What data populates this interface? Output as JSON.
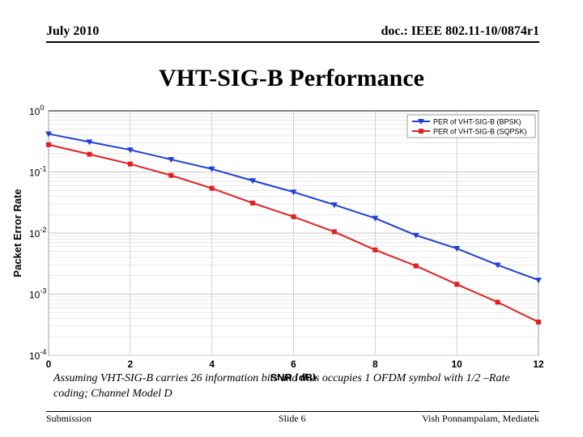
{
  "header": {
    "date": "July 2010",
    "doc": "doc.: IEEE 802.11-10/0874r1"
  },
  "title": "VHT-SIG-B Performance",
  "caption": "Assuming VHT-SIG-B carries 26 information bits and thus occupies 1 OFDM symbol with 1/2 –Rate coding; Channel Model D",
  "footer": {
    "left": "Submission",
    "center": "Slide 6",
    "right": "Vish Ponnampalam, Mediatek"
  },
  "colors": {
    "series1": "#1f3fd6",
    "series2": "#e02020",
    "grid": "#c8c8c8"
  },
  "chart_data": {
    "type": "line",
    "xlabel": "SNR (dB)",
    "ylabel": "Packet Error Rate",
    "xlim": [
      0,
      12
    ],
    "ylim": [
      0.0001,
      1
    ],
    "yscale": "log",
    "grid": true,
    "legend_position": "top-right",
    "x_ticks": [
      "0",
      "2",
      "4",
      "6",
      "8",
      "10",
      "12"
    ],
    "y_ticks": [
      {
        "base": "10",
        "exp": "0"
      },
      {
        "base": "10",
        "exp": "-1"
      },
      {
        "base": "10",
        "exp": "-2"
      },
      {
        "base": "10",
        "exp": "-3"
      },
      {
        "base": "10",
        "exp": "-4"
      }
    ],
    "x": [
      0,
      1,
      2,
      3,
      4,
      5,
      6,
      7,
      8,
      9,
      10,
      11,
      12
    ],
    "series": [
      {
        "name": "PER of VHT-SIG-B (BPSK)",
        "marker": "triangle-down",
        "values": [
          0.42,
          0.31,
          0.23,
          0.16,
          0.112,
          0.072,
          0.047,
          0.029,
          0.0175,
          0.0092,
          0.0056,
          0.003,
          0.0017
        ]
      },
      {
        "name": "PER of VHT-SIG-B (SQPSK)",
        "marker": "square",
        "values": [
          0.28,
          0.195,
          0.135,
          0.088,
          0.054,
          0.031,
          0.0185,
          0.0105,
          0.0053,
          0.0029,
          0.00145,
          0.00074,
          0.00035
        ]
      }
    ]
  }
}
